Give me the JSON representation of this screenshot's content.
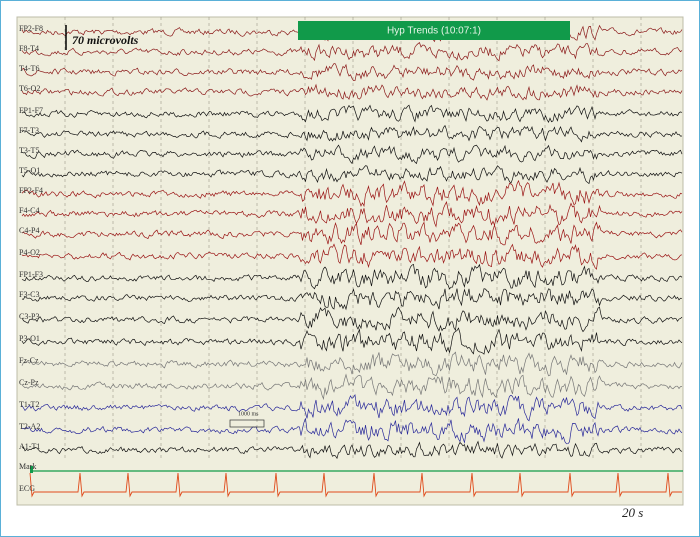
{
  "scale_label": "70 microvolts",
  "time_label": "20 s",
  "event_label": "Hyp Trends (10:07:1)",
  "timebase_label": "1000 ms",
  "channels": [
    "FP2-F8",
    "F8-T4",
    "T4-T6",
    "T6-O2",
    "FP1-F7",
    "F7-T3",
    "T3-T5",
    "T5-O1",
    "FP2-F4",
    "F4-C4",
    "C4-P4",
    "P4-O2",
    "FP1-F3",
    "F3-C3",
    "C3-P3",
    "P3-O1",
    "Fz-Cz",
    "Cz-Pz",
    "T1-T2",
    "T2-A2",
    "A1-T1",
    "Mark",
    "ECG"
  ]
}
